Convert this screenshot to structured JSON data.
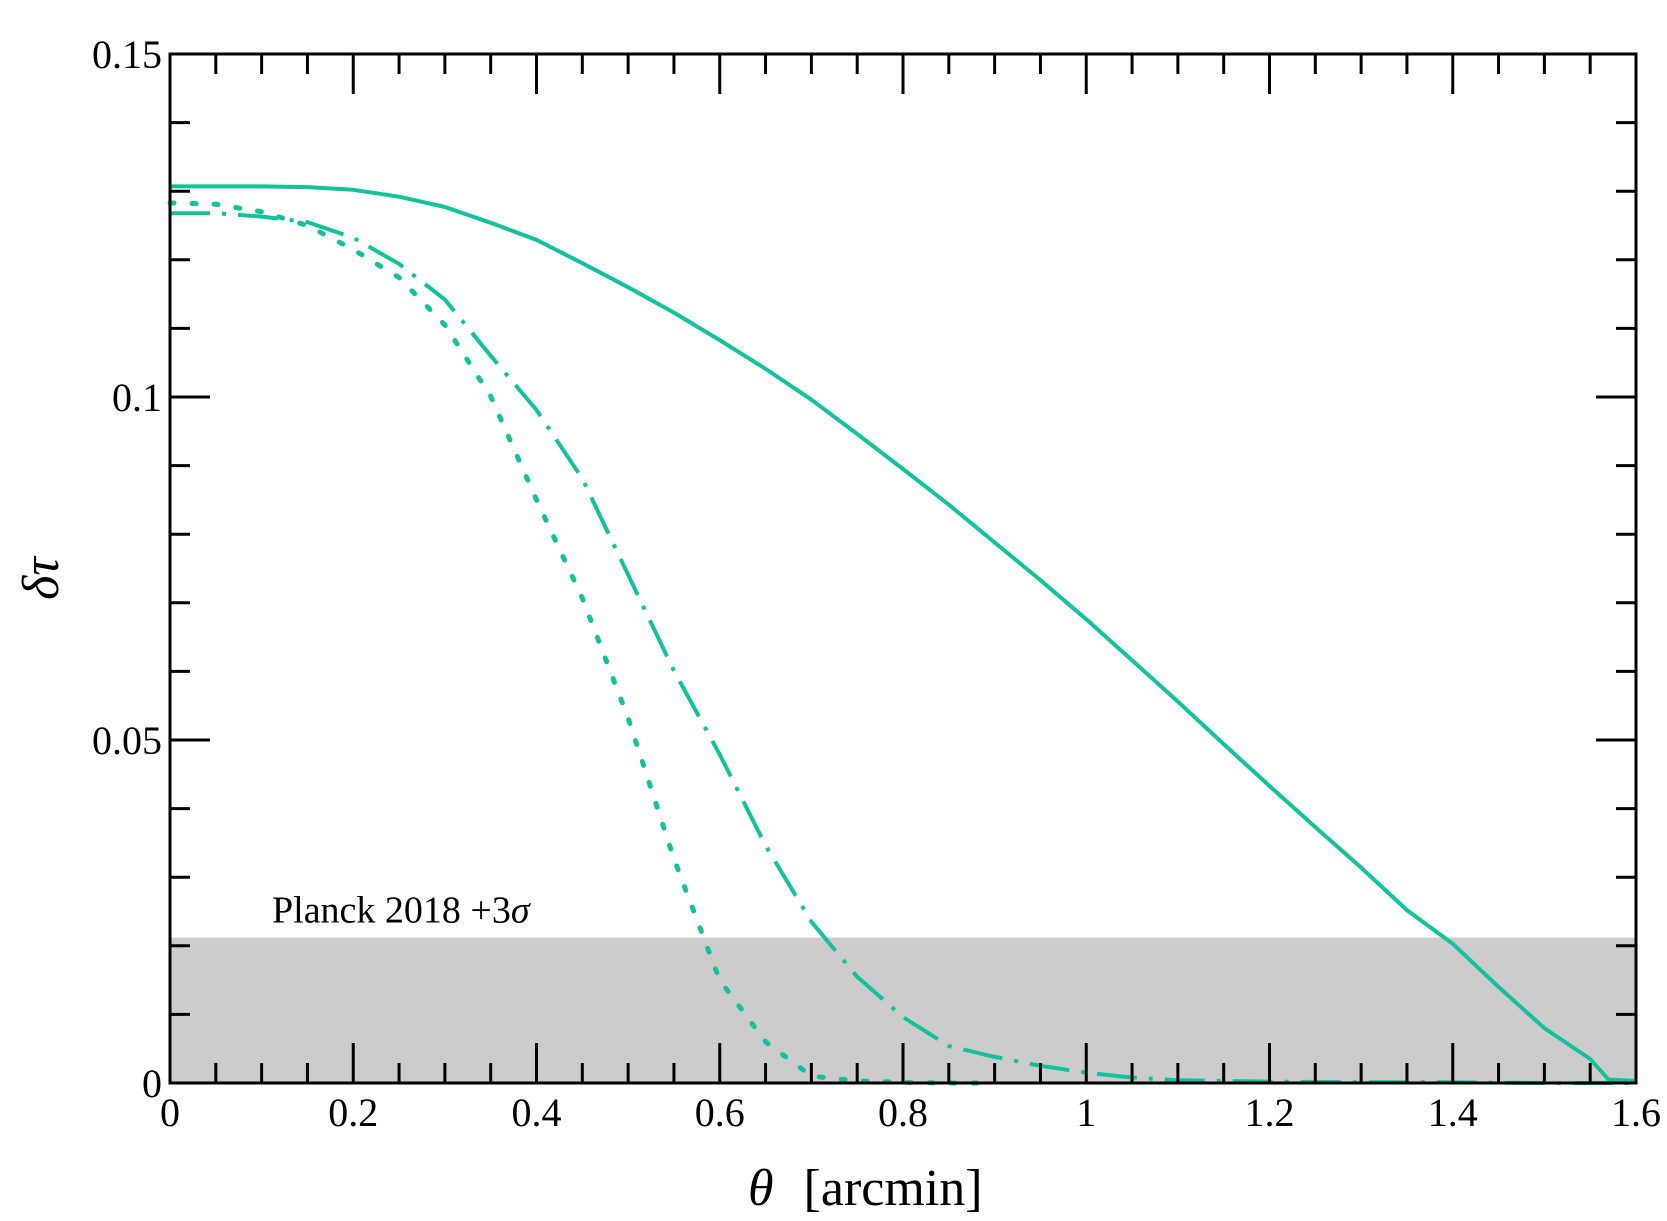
{
  "chart_data": {
    "type": "line",
    "title": "",
    "xlabel_symbol": "θ",
    "xlabel_unit": "[arcmin]",
    "ylabel_symbol": "δτ",
    "xlim": [
      0,
      1.6
    ],
    "ylim": [
      0,
      0.15
    ],
    "grid": false,
    "x_ticks": [
      {
        "value": 0,
        "label": "0"
      },
      {
        "value": 0.2,
        "label": "0.2"
      },
      {
        "value": 0.4,
        "label": "0.4"
      },
      {
        "value": 0.6,
        "label": "0.6"
      },
      {
        "value": 0.8,
        "label": "0.8"
      },
      {
        "value": 1.0,
        "label": "1"
      },
      {
        "value": 1.2,
        "label": "1.2"
      },
      {
        "value": 1.4,
        "label": "1.4"
      },
      {
        "value": 1.6,
        "label": "1.6"
      }
    ],
    "y_ticks": [
      {
        "value": 0,
        "label": "0"
      },
      {
        "value": 0.05,
        "label": "0.05"
      },
      {
        "value": 0.1,
        "label": "0.1"
      },
      {
        "value": 0.15,
        "label": "0.15"
      }
    ],
    "band": {
      "y0": 0,
      "y1": 0.0212,
      "color": "#cccccc",
      "label_prefix": "Planck 2018 +3",
      "label_symbol": "σ"
    },
    "series": [
      {
        "name": "solid",
        "style": "solid",
        "color": "#13c29c",
        "x": [
          0,
          0.05,
          0.1,
          0.15,
          0.2,
          0.25,
          0.3,
          0.35,
          0.4,
          0.45,
          0.5,
          0.55,
          0.6,
          0.65,
          0.7,
          0.75,
          0.8,
          0.85,
          0.9,
          0.95,
          1.0,
          1.05,
          1.1,
          1.15,
          1.2,
          1.25,
          1.3,
          1.35,
          1.4,
          1.45,
          1.5,
          1.55,
          1.57,
          1.6
        ],
        "y": [
          0.1307,
          0.1307,
          0.1307,
          0.1306,
          0.1302,
          0.1292,
          0.1277,
          0.1254,
          0.1229,
          0.1195,
          0.116,
          0.1123,
          0.1083,
          0.1041,
          0.0996,
          0.0946,
          0.0895,
          0.0843,
          0.0788,
          0.0733,
          0.0676,
          0.0616,
          0.0556,
          0.0494,
          0.0433,
          0.0373,
          0.0314,
          0.0252,
          0.0203,
          0.014,
          0.008,
          0.0035,
          0.0005,
          0.0003
        ]
      },
      {
        "name": "dashed",
        "style": "dashed",
        "color": "#13c29c",
        "x": [
          0,
          0.05,
          0.1,
          0.15,
          0.2,
          0.25,
          0.3,
          0.35,
          0.4,
          0.45,
          0.5,
          0.55,
          0.6,
          0.65,
          0.7,
          0.75,
          0.8,
          0.85,
          0.9,
          0.95,
          1.0,
          1.05,
          1.1,
          1.2,
          1.3,
          1.4,
          1.5,
          1.6
        ],
        "y": [
          0.1268,
          0.1268,
          0.1263,
          0.1255,
          0.1232,
          0.1194,
          0.1142,
          0.106,
          0.0981,
          0.0881,
          0.0741,
          0.0601,
          0.0479,
          0.0346,
          0.0235,
          0.0155,
          0.0096,
          0.0054,
          0.0038,
          0.0025,
          0.0015,
          0.0008,
          0.0004,
          0.0002,
          0.0001,
          0.0001,
          0.0,
          0.0
        ]
      },
      {
        "name": "dotted",
        "style": "dotted",
        "color": "#13c29c",
        "x": [
          0,
          0.05,
          0.1,
          0.15,
          0.2,
          0.25,
          0.3,
          0.35,
          0.4,
          0.45,
          0.5,
          0.55,
          0.6,
          0.65,
          0.7,
          0.75,
          0.8,
          0.85,
          0.9
        ],
        "y": [
          0.1283,
          0.1281,
          0.127,
          0.125,
          0.1215,
          0.1174,
          0.1105,
          0.1001,
          0.085,
          0.0707,
          0.0532,
          0.0327,
          0.015,
          0.006,
          0.001,
          0.0003,
          0.0001,
          0.0,
          0.0
        ]
      }
    ]
  }
}
